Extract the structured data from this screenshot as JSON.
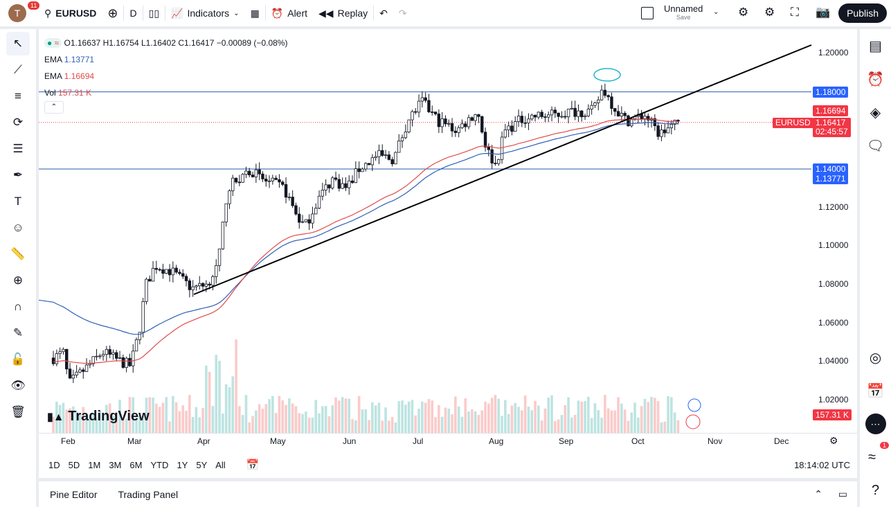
{
  "topbar": {
    "avatar": "T",
    "notifications": "11",
    "symbol": "EURUSD",
    "interval": "D",
    "indicators": "Indicators",
    "alert": "Alert",
    "replay": "Replay",
    "layout_name": "Unnamed",
    "layout_sub": "Save",
    "publish": "Publish"
  },
  "legend": {
    "ohlc": "O1.16637 H1.16754 L1.16402 C1.16417 −0.00089 (−0.08%)",
    "ema1_label": "EMA",
    "ema1_value": "1.13771",
    "ema2_label": "EMA",
    "ema2_value": "1.16694",
    "vol_label": "Vol",
    "vol_value": "157.31 K"
  },
  "price_axis": {
    "ticks": [
      "1.20000",
      "1.12000",
      "1.10000",
      "1.08000",
      "1.06000",
      "1.04000",
      "1.02000"
    ],
    "line_1": "1.18000",
    "line_2": "1.14000",
    "ema_blue": "1.13771",
    "ema_red": "1.16694",
    "symbol_tag": "EURUSD",
    "last_price": "1.16417",
    "countdown": "02:45:57",
    "volume": "157.31 K"
  },
  "time_axis": [
    "Feb",
    "Mar",
    "Apr",
    "May",
    "Jun",
    "Jul",
    "Aug",
    "Sep",
    "Oct",
    "Nov",
    "Dec"
  ],
  "ranges": [
    "1D",
    "5D",
    "1M",
    "3M",
    "6M",
    "YTD",
    "1Y",
    "5Y",
    "All"
  ],
  "clock": "18:14:02 UTC",
  "bottom_tabs": [
    "Pine Editor",
    "Trading Panel"
  ],
  "watermark": "TradingView",
  "colors": {
    "up": "#26a69a",
    "down": "#ef5350",
    "ema_fast": "#e04a4a",
    "ema_slow": "#2e5fb8",
    "hline": "#2962ff",
    "price": "#f23645"
  },
  "right_badge": "1",
  "chart_data": {
    "type": "candlestick",
    "symbol": "EURUSD",
    "ylim": [
      1.01,
      1.205
    ],
    "approx_closes": [
      [
        "Jan 24",
        1.042
      ],
      [
        "Jan 29",
        1.045
      ],
      [
        "Feb 1",
        1.028
      ],
      [
        "Feb 10",
        1.038
      ],
      [
        "Feb 16",
        1.045
      ],
      [
        "Feb 24",
        1.04
      ],
      [
        "Feb 28",
        1.038
      ],
      [
        "Mar 3",
        1.055
      ],
      [
        "Mar 6",
        1.08
      ],
      [
        "Mar 10",
        1.09
      ],
      [
        "Mar 17",
        1.087
      ],
      [
        "Mar 26",
        1.078
      ],
      [
        "Apr 2",
        1.08
      ],
      [
        "Apr 7",
        1.09
      ],
      [
        "Apr 11",
        1.13
      ],
      [
        "Apr 21",
        1.14
      ],
      [
        "Apr 25",
        1.135
      ],
      [
        "May 4",
        1.13
      ],
      [
        "May 10",
        1.115
      ],
      [
        "May 13",
        1.11
      ],
      [
        "May 19",
        1.125
      ],
      [
        "May 25",
        1.135
      ],
      [
        "May 31",
        1.13
      ],
      [
        "Jun 5",
        1.14
      ],
      [
        "Jun 13",
        1.147
      ],
      [
        "Jun 20",
        1.145
      ],
      [
        "Jun 26",
        1.165
      ],
      [
        "Jul 2",
        1.175
      ],
      [
        "Jul 9",
        1.165
      ],
      [
        "Jul 17",
        1.16
      ],
      [
        "Jul 26",
        1.17
      ],
      [
        "Jul 30",
        1.15
      ],
      [
        "Aug 1",
        1.142
      ],
      [
        "Aug 5",
        1.16
      ],
      [
        "Aug 14",
        1.167
      ],
      [
        "Aug 26",
        1.168
      ],
      [
        "Sep 4",
        1.17
      ],
      [
        "Sep 13",
        1.17
      ],
      [
        "Sep 17",
        1.182
      ],
      [
        "Sep 22",
        1.172
      ],
      [
        "Sep 27",
        1.165
      ],
      [
        "Oct 4",
        1.168
      ],
      [
        "Oct 10",
        1.158
      ],
      [
        "Oct 15",
        1.162
      ],
      [
        "Oct 19",
        1.164
      ]
    ]
  }
}
